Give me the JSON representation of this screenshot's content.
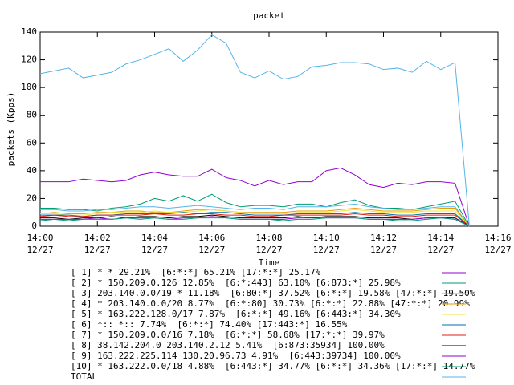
{
  "chart_data": {
    "type": "line",
    "title": "packet",
    "x_label": "Time",
    "y_label": "packets (Kpps)",
    "xlim": [
      0,
      16
    ],
    "ylim": [
      0,
      140
    ],
    "xticks": [
      {
        "value": 0,
        "label": "14:00\n12/27"
      },
      {
        "value": 2,
        "label": "14:02\n12/27"
      },
      {
        "value": 4,
        "label": "14:04\n12/27"
      },
      {
        "value": 6,
        "label": "14:06\n12/27"
      },
      {
        "value": 8,
        "label": "14:08\n12/27"
      },
      {
        "value": 10,
        "label": "14:10\n12/27"
      },
      {
        "value": 12,
        "label": "14:12\n12/27"
      },
      {
        "value": 14,
        "label": "14:14\n12/27"
      },
      {
        "value": 16,
        "label": "14:16\n12/27"
      }
    ],
    "yticks": [
      0,
      20,
      40,
      60,
      80,
      100,
      120,
      140
    ],
    "x": [
      0,
      0.5,
      1,
      1.5,
      2,
      2.5,
      3,
      3.5,
      4,
      4.5,
      5,
      5.5,
      6,
      6.5,
      7,
      7.5,
      8,
      8.5,
      9,
      9.5,
      10,
      10.5,
      11,
      11.5,
      12,
      12.5,
      13,
      13.5,
      14,
      14.5,
      15
    ],
    "series": [
      {
        "name": "[ 1] * * 29.21%  [6:*:*] 65.21% [17:*:*] 25.17%",
        "color": "#9400d3",
        "values": [
          32,
          32,
          32,
          34,
          33,
          32,
          33,
          37,
          39,
          37,
          36,
          36,
          41,
          35,
          33,
          29,
          33,
          30,
          32,
          32,
          40,
          42,
          37,
          30,
          28,
          31,
          30,
          32,
          32,
          31,
          0
        ]
      },
      {
        "name": "[ 2] * 150.209.0.126 12.85%  [6:*:443] 63.10% [6:873:*] 25.98%",
        "color": "#009e73",
        "values": [
          13,
          13,
          12,
          12,
          11,
          13,
          14,
          16,
          20,
          18,
          22,
          18,
          23,
          17,
          14,
          15,
          15,
          14,
          16,
          16,
          14,
          17,
          19,
          15,
          13,
          13,
          12,
          14,
          16,
          18,
          0
        ]
      },
      {
        "name": "[ 3] 203.140.0.0/19 * 11.18%  [6:80:*] 37.52% [6:*:*] 19.58% [47:*:*] 19.50%",
        "color": "#56b4e9",
        "values": [
          12,
          12,
          11,
          11,
          12,
          12,
          13,
          14,
          14,
          13,
          14,
          15,
          14,
          13,
          12,
          13,
          13,
          12,
          14,
          14,
          14,
          15,
          16,
          14,
          13,
          12,
          12,
          13,
          14,
          14,
          0
        ]
      },
      {
        "name": "[ 4] * 203.140.0.0/20 8.77%  [6:*:80] 30.73% [6:*:*] 22.88% [47:*:*] 20.99%",
        "color": "#e69f00",
        "values": [
          9,
          10,
          9,
          9,
          10,
          10,
          11,
          11,
          10,
          10,
          11,
          12,
          12,
          11,
          10,
          10,
          10,
          10,
          11,
          11,
          11,
          12,
          13,
          12,
          11,
          11,
          11,
          12,
          13,
          13,
          0
        ]
      },
      {
        "name": "[ 5] * 163.222.128.0/17 7.87%  [6:*:*] 49.16% [6:443:*] 34.30%",
        "color": "#f0e442",
        "values": [
          9,
          9,
          8,
          8,
          9,
          10,
          10,
          10,
          11,
          10,
          10,
          11,
          12,
          11,
          10,
          9,
          9,
          9,
          10,
          10,
          10,
          11,
          12,
          11,
          10,
          10,
          10,
          11,
          11,
          11,
          0
        ]
      },
      {
        "name": "[ 6] *:: *:: 7.74%  [6:*:*] 74.40% [17:443:*] 16.55%",
        "color": "#0072b2",
        "values": [
          8,
          8,
          8,
          7,
          8,
          8,
          9,
          9,
          9,
          9,
          10,
          9,
          10,
          10,
          9,
          8,
          8,
          8,
          9,
          9,
          9,
          9,
          10,
          9,
          9,
          8,
          8,
          9,
          9,
          9,
          0
        ]
      },
      {
        "name": "[ 7] * 150.209.0.0/16 7.18%  [6:*:*] 58.68% [17:*:*] 39.97%",
        "color": "#e51e10",
        "values": [
          7,
          8,
          7,
          7,
          8,
          8,
          8,
          8,
          9,
          8,
          8,
          9,
          9,
          8,
          8,
          7,
          7,
          8,
          8,
          8,
          8,
          8,
          9,
          8,
          8,
          7,
          7,
          8,
          8,
          8,
          0
        ]
      },
      {
        "name": "[ 8] 38.142.204.0 203.140.2.12 5.41%  [6:873:35934] 100.00%",
        "color": "#000000",
        "values": [
          6,
          6,
          5,
          6,
          6,
          7,
          6,
          7,
          7,
          6,
          7,
          7,
          8,
          7,
          6,
          6,
          6,
          6,
          7,
          6,
          7,
          7,
          7,
          6,
          6,
          6,
          5,
          6,
          6,
          6,
          0
        ]
      },
      {
        "name": "[ 9] 163.222.225.114 130.20.96.73 4.91%  [6:443:39734] 100.00%",
        "color": "#9400d3",
        "values": [
          5,
          5,
          5,
          5,
          6,
          5,
          6,
          6,
          6,
          5,
          6,
          6,
          7,
          6,
          5,
          5,
          5,
          5,
          6,
          6,
          6,
          6,
          6,
          5,
          5,
          5,
          5,
          6,
          6,
          5,
          0
        ]
      },
      {
        "name": "[10] * 163.222.0.0/18 4.88%  [6:443:*] 34.77% [6:*:*] 34.36% [17:*:*] 14.77%",
        "color": "#009e73",
        "values": [
          4,
          5,
          4,
          5,
          5,
          5,
          6,
          5,
          6,
          5,
          5,
          6,
          6,
          6,
          5,
          5,
          5,
          4,
          5,
          5,
          6,
          6,
          6,
          5,
          5,
          4,
          4,
          5,
          6,
          5,
          0
        ]
      },
      {
        "name": "TOTAL",
        "color": "#56b4e9",
        "values": [
          110,
          112,
          114,
          107,
          109,
          111,
          117,
          120,
          124,
          128,
          119,
          127,
          138,
          132,
          111,
          107,
          112,
          106,
          108,
          115,
          116,
          118,
          118,
          117,
          113,
          114,
          111,
          119,
          113,
          118,
          0
        ]
      }
    ]
  }
}
